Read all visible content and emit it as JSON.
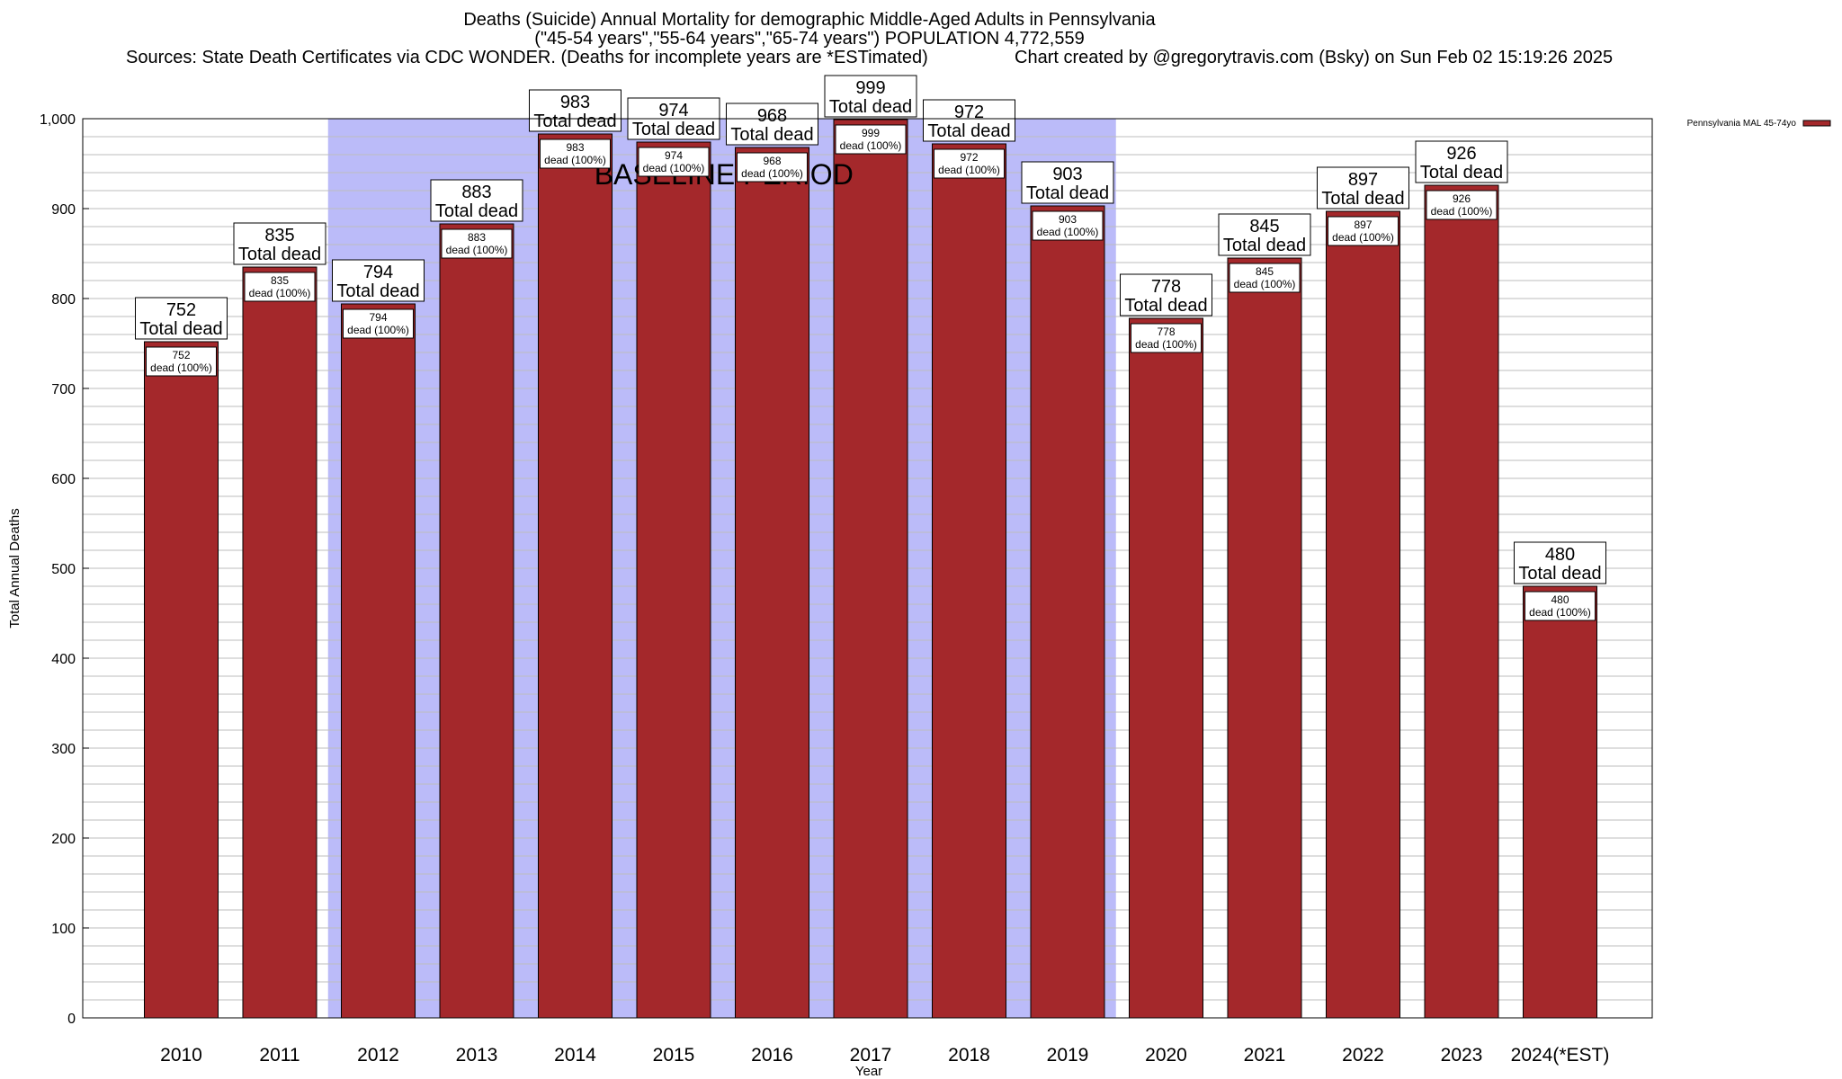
{
  "header": {
    "title_line_1": "Deaths (Suicide) Annual Mortality for demographic Middle-Aged Adults in Pennsylvania",
    "title_line_2": "(\"45-54 years\",\"55-64 years\",\"65-74 years\") POPULATION 4,772,559",
    "sources": "Sources: State Death Certificates via CDC WONDER. (Deaths for incomplete years are *ESTimated)",
    "credit": "Chart created by @gregorytravis.com (Bsky) on Sun Feb 02 15:19:26 2025"
  },
  "chart_data": {
    "type": "bar",
    "title": "Deaths (Suicide) Annual Mortality for demographic Middle-Aged Adults in Pennsylvania",
    "xlabel": "Year",
    "ylabel": "Total Annual Deaths",
    "ylim": [
      0,
      1000
    ],
    "y_ticks": [
      0,
      100,
      200,
      300,
      400,
      500,
      600,
      700,
      800,
      900,
      1000
    ],
    "y_tick_labels": [
      "0",
      "100",
      "200",
      "300",
      "400",
      "500",
      "600",
      "700",
      "800",
      "900",
      "1,000"
    ],
    "grid": true,
    "categories": [
      "2010",
      "2011",
      "2012",
      "2013",
      "2014",
      "2015",
      "2016",
      "2017",
      "2018",
      "2019",
      "2020",
      "2021",
      "2022",
      "2023",
      "2024(*EST)"
    ],
    "series": [
      {
        "name": "Pennsylvania MAL 45-74yo",
        "color": "#a4282b",
        "values": [
          752,
          835,
          794,
          883,
          983,
          974,
          968,
          999,
          972,
          903,
          778,
          845,
          897,
          926,
          480
        ]
      }
    ],
    "bar_total_labels": [
      "752",
      "835",
      "794",
      "883",
      "983",
      "974",
      "968",
      "999",
      "972",
      "903",
      "778",
      "845",
      "897",
      "926",
      "480"
    ],
    "total_suffix": "Total dead",
    "bar_inner_value_labels": [
      "752",
      "835",
      "794",
      "883",
      "983",
      "974",
      "968",
      "999",
      "972",
      "903",
      "778",
      "845",
      "897",
      "926",
      "480"
    ],
    "inner_suffix": "dead (100%)",
    "baseline_period": {
      "label": "BASELINE PERIOD",
      "from_category": "2012",
      "to_category": "2019",
      "color": "#bbbbf9"
    },
    "legend": {
      "placement": "top-right",
      "entries": [
        "Pennsylvania MAL 45-74yo"
      ]
    },
    "colors": {
      "bar": "#a4282b",
      "baseline_shade": "#bbbbf9",
      "gridline": "#bdbdbd"
    }
  }
}
